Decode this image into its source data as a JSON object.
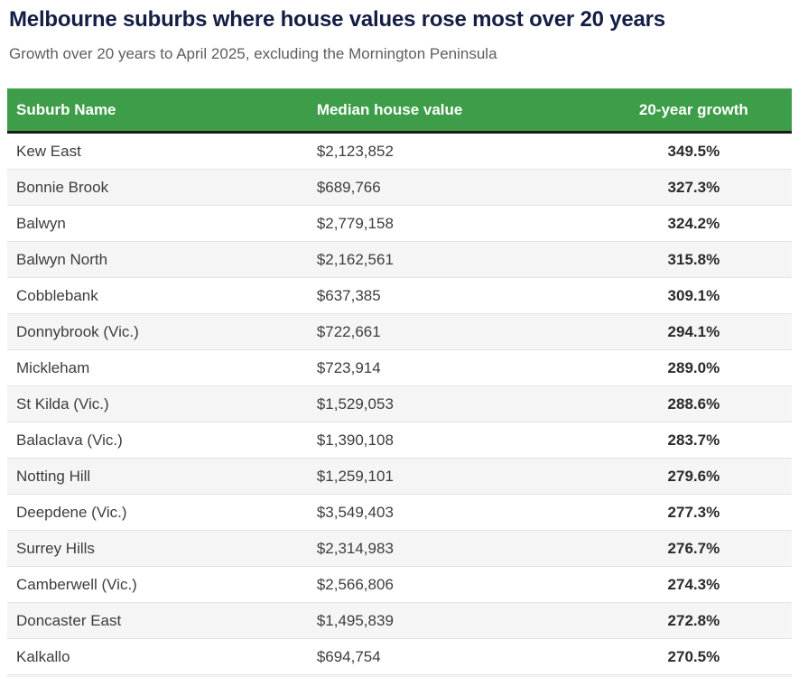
{
  "page": {
    "title": "Melbourne suburbs where house values rose most over 20 years",
    "subtitle": "Growth over 20 years to April 2025, excluding the Mornington Peninsula"
  },
  "table": {
    "columns": [
      "Suburb Name",
      "Median house value",
      "20-year growth"
    ],
    "rows": [
      {
        "suburb": "Kew East",
        "median": "$2,123,852",
        "growth": "349.5%"
      },
      {
        "suburb": "Bonnie Brook",
        "median": "$689,766",
        "growth": "327.3%"
      },
      {
        "suburb": "Balwyn",
        "median": "$2,779,158",
        "growth": "324.2%"
      },
      {
        "suburb": "Balwyn North",
        "median": "$2,162,561",
        "growth": "315.8%"
      },
      {
        "suburb": "Cobblebank",
        "median": "$637,385",
        "growth": "309.1%"
      },
      {
        "suburb": "Donnybrook (Vic.)",
        "median": "$722,661",
        "growth": "294.1%"
      },
      {
        "suburb": "Mickleham",
        "median": "$723,914",
        "growth": "289.0%"
      },
      {
        "suburb": "St Kilda (Vic.)",
        "median": "$1,529,053",
        "growth": "288.6%"
      },
      {
        "suburb": "Balaclava (Vic.)",
        "median": "$1,390,108",
        "growth": "283.7%"
      },
      {
        "suburb": "Notting Hill",
        "median": "$1,259,101",
        "growth": "279.6%"
      },
      {
        "suburb": "Deepdene (Vic.)",
        "median": "$3,549,403",
        "growth": "277.3%"
      },
      {
        "suburb": "Surrey Hills",
        "median": "$2,314,983",
        "growth": "276.7%"
      },
      {
        "suburb": "Camberwell (Vic.)",
        "median": "$2,566,806",
        "growth": "274.3%"
      },
      {
        "suburb": "Doncaster East",
        "median": "$1,495,839",
        "growth": "272.8%"
      },
      {
        "suburb": "Kalkallo",
        "median": "$694,754",
        "growth": "270.5%"
      }
    ]
  },
  "colors": {
    "header_bg": "#3e9d49",
    "header_text": "#ffffff",
    "header_border": "#1b1b1b",
    "title_text": "#141e45",
    "subtitle_text": "#5d5d5d",
    "row_text": "#3d3d3d",
    "growth_text": "#2b2b2b",
    "row_alt_bg": "#f5f5f5",
    "row_divider": "#e4e4e4"
  },
  "chart_data": {
    "type": "table",
    "title": "Melbourne suburbs where house values rose most over 20 years",
    "subtitle": "Growth over 20 years to April 2025, excluding the Mornington Peninsula",
    "columns": [
      "Suburb Name",
      "Median house value",
      "20-year growth"
    ],
    "rows": [
      [
        "Kew East",
        "$2,123,852",
        "349.5%"
      ],
      [
        "Bonnie Brook",
        "$689,766",
        "327.3%"
      ],
      [
        "Balwyn",
        "$2,779,158",
        "324.2%"
      ],
      [
        "Balwyn North",
        "$2,162,561",
        "315.8%"
      ],
      [
        "Cobblebank",
        "$637,385",
        "309.1%"
      ],
      [
        "Donnybrook (Vic.)",
        "$722,661",
        "294.1%"
      ],
      [
        "Mickleham",
        "$723,914",
        "289.0%"
      ],
      [
        "St Kilda (Vic.)",
        "$1,529,053",
        "288.6%"
      ],
      [
        "Balaclava (Vic.)",
        "$1,390,108",
        "283.7%"
      ],
      [
        "Notting Hill",
        "$1,259,101",
        "279.6%"
      ],
      [
        "Deepdene (Vic.)",
        "$3,549,403",
        "277.3%"
      ],
      [
        "Surrey Hills",
        "$2,314,983",
        "276.7%"
      ],
      [
        "Camberwell (Vic.)",
        "$2,566,806",
        "274.3%"
      ],
      [
        "Doncaster East",
        "$1,495,839",
        "272.8%"
      ],
      [
        "Kalkallo",
        "$694,754",
        "270.5%"
      ]
    ],
    "median_values_numeric": [
      2123852,
      689766,
      2779158,
      2162561,
      637385,
      722661,
      723914,
      1529053,
      1390108,
      1259101,
      3549403,
      2314983,
      2566806,
      1495839,
      694754
    ],
    "growth_values_numeric": [
      349.5,
      327.3,
      324.2,
      315.8,
      309.1,
      294.1,
      289.0,
      288.6,
      283.7,
      279.6,
      277.3,
      276.7,
      274.3,
      272.8,
      270.5
    ]
  }
}
